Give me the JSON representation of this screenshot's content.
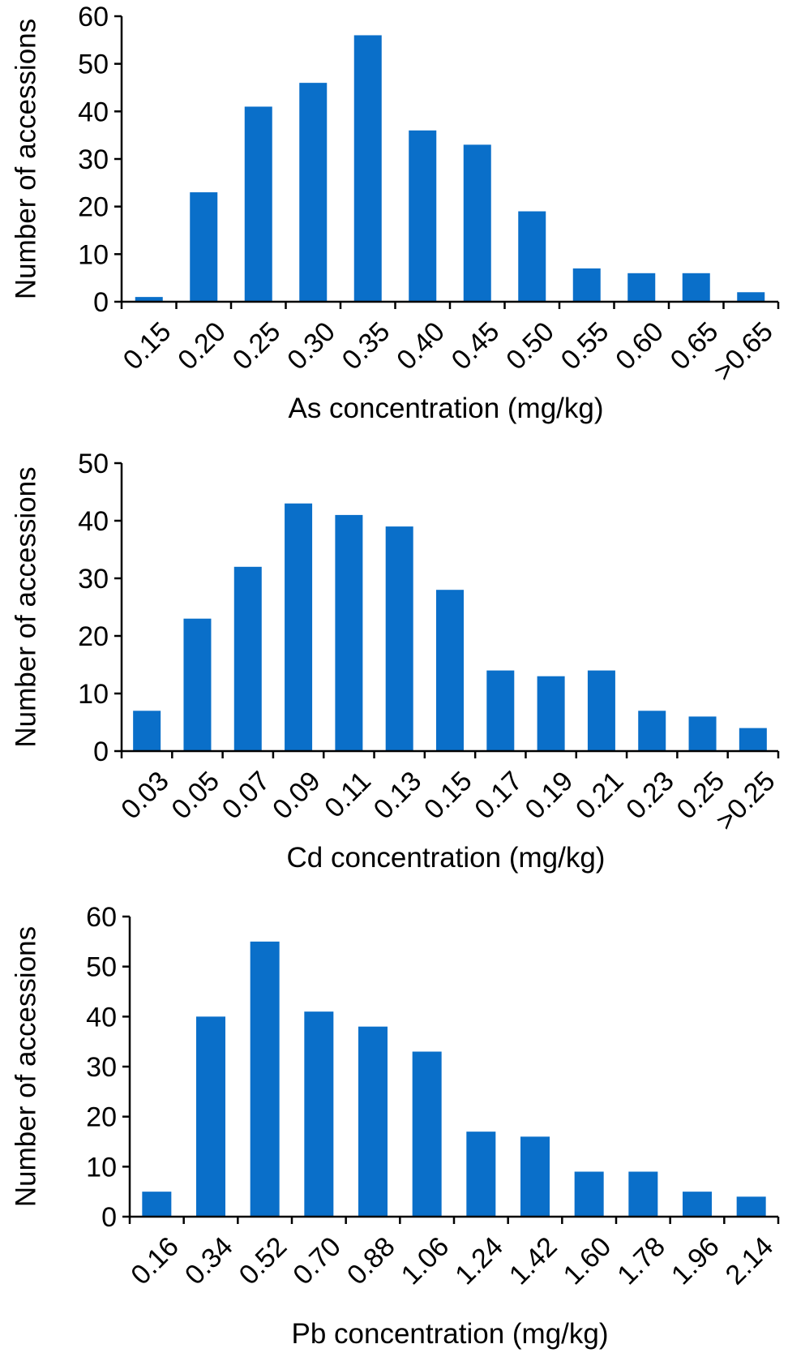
{
  "bar_color": "#0a6fc9",
  "chart_data": [
    {
      "type": "bar",
      "xlabel": "As concentration (mg/kg)",
      "ylabel": "Number of accessions",
      "ylim": [
        0,
        60
      ],
      "yticks": [
        0,
        10,
        20,
        30,
        40,
        50,
        60
      ],
      "categories": [
        "0.15",
        "0.20",
        "0.25",
        "0.30",
        "0.35",
        "0.40",
        "0.45",
        "0.50",
        "0.55",
        "0.60",
        "0.65",
        ">0.65"
      ],
      "values": [
        1,
        23,
        41,
        46,
        56,
        36,
        33,
        19,
        7,
        6,
        6,
        2
      ]
    },
    {
      "type": "bar",
      "xlabel": "Cd concentration (mg/kg)",
      "ylabel": "Number of accessions",
      "ylim": [
        0,
        50
      ],
      "yticks": [
        0,
        10,
        20,
        30,
        40,
        50
      ],
      "categories": [
        "0.03",
        "0.05",
        "0.07",
        "0.09",
        "0.11",
        "0.13",
        "0.15",
        "0.17",
        "0.19",
        "0.21",
        "0.23",
        "0.25",
        ">0.25"
      ],
      "values": [
        7,
        23,
        32,
        43,
        41,
        39,
        28,
        14,
        13,
        14,
        7,
        6,
        4
      ]
    },
    {
      "type": "bar",
      "xlabel": "Pb concentration (mg/kg)",
      "ylabel": "Number of accessions",
      "ylim": [
        0,
        60
      ],
      "yticks": [
        0,
        10,
        20,
        30,
        40,
        50,
        60
      ],
      "categories": [
        "0.16",
        "0.34",
        "0.52",
        "0.70",
        "0.88",
        "1.06",
        "1.24",
        "1.42",
        "1.60",
        "1.78",
        "1.96",
        "2.14"
      ],
      "values": [
        5,
        40,
        55,
        41,
        38,
        33,
        17,
        16,
        9,
        9,
        5,
        4
      ]
    }
  ]
}
